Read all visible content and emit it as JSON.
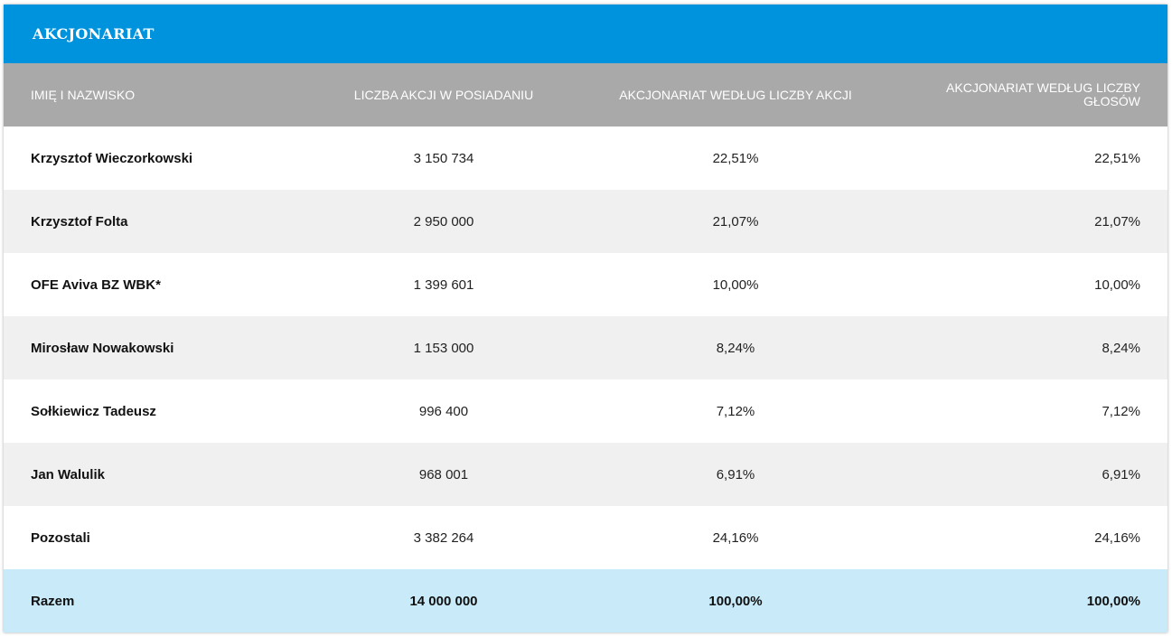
{
  "header": {
    "title": "AKCJONARIAT"
  },
  "columns": [
    "IMIĘ I NAZWISKO",
    "LICZBA AKCJI W POSIADANIU",
    "AKCJONARIAT WEDŁUG LICZBY AKCJI",
    "AKCJONARIAT WEDŁUG LICZBY GŁOSÓW"
  ],
  "rows": [
    {
      "name": "Krzysztof Wieczorkowski",
      "shares": "3 150 734",
      "pct_shares": "22,51%",
      "pct_votes": "22,51%"
    },
    {
      "name": "Krzysztof Folta",
      "shares": "2 950 000",
      "pct_shares": "21,07%",
      "pct_votes": "21,07%"
    },
    {
      "name": "OFE Aviva BZ WBK*",
      "shares": "1 399 601",
      "pct_shares": "10,00%",
      "pct_votes": "10,00%"
    },
    {
      "name": "Mirosław Nowakowski",
      "shares": "1 153 000",
      "pct_shares": "8,24%",
      "pct_votes": "8,24%"
    },
    {
      "name": "Sołkiewicz Tadeusz",
      "shares": "996 400",
      "pct_shares": "7,12%",
      "pct_votes": "7,12%"
    },
    {
      "name": "Jan Walulik",
      "shares": "968 001",
      "pct_shares": "6,91%",
      "pct_votes": "6,91%"
    },
    {
      "name": "Pozostali",
      "shares": "3 382 264",
      "pct_shares": "24,16%",
      "pct_votes": "24,16%"
    }
  ],
  "total": {
    "name": "Razem",
    "shares": "14 000 000",
    "pct_shares": "100,00%",
    "pct_votes": "100,00%"
  },
  "colors": {
    "header_bg": "#0093dd",
    "column_header_bg": "#a9a9a9",
    "row_alt_bg": "#f0f0f0",
    "total_row_bg": "#c8eaf9"
  }
}
